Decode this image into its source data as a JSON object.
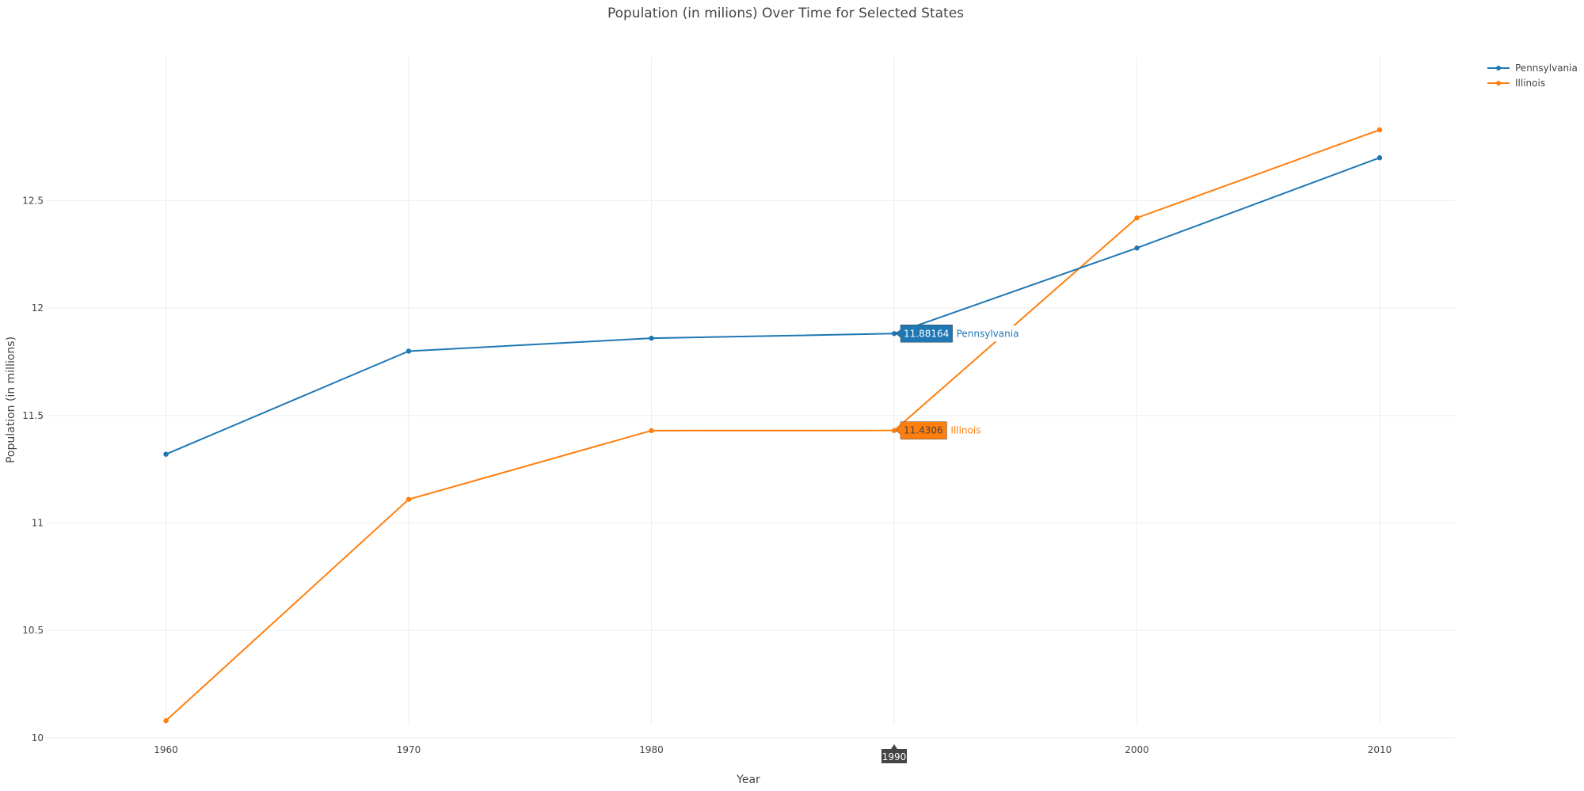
{
  "chart_data": {
    "type": "line",
    "title": "Population (in milions) Over Time for Selected States",
    "xlabel": "Year",
    "ylabel": "Population (in millions)",
    "x": [
      1960,
      1970,
      1980,
      1990,
      2000,
      2010
    ],
    "x_ticks": [
      "1960",
      "1970",
      "1980",
      "1990",
      "2000",
      "2010"
    ],
    "y_ticks": [
      "10",
      "10.5",
      "11",
      "11.5",
      "12",
      "12.5"
    ],
    "xlim": [
      1956.1,
      2013.1
    ],
    "ylim": [
      9.97,
      13.25
    ],
    "grid": true,
    "legend_position": "top-right",
    "series": [
      {
        "name": "Pennsylvania",
        "color": "#1f77b4",
        "values": [
          11.32,
          11.8,
          11.86,
          11.88164,
          12.28,
          12.7
        ]
      },
      {
        "name": "Illinois",
        "color": "#ff7f0e",
        "values": [
          10.08,
          11.11,
          11.43,
          11.4306,
          12.42,
          12.83
        ]
      }
    ],
    "hover": {
      "x_label": "1990",
      "labels": [
        {
          "value": "11.88164",
          "name": "Pennsylvania"
        },
        {
          "value": "11.4306",
          "name": "Illinois"
        }
      ]
    }
  }
}
